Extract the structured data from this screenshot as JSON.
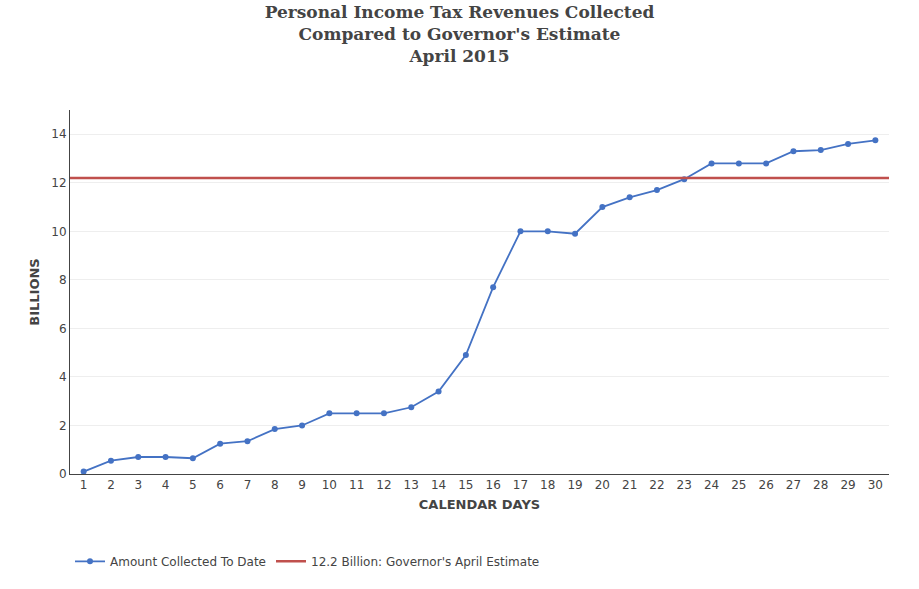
{
  "chart_data": {
    "type": "line",
    "title": "Personal Income Tax Revenues Collected\nCompared to Governor's Estimate\nApril 2015",
    "xlabel": "CALENDAR DAYS",
    "ylabel": "BILLIONS",
    "x": [
      1,
      2,
      3,
      4,
      5,
      6,
      7,
      8,
      9,
      10,
      11,
      12,
      13,
      14,
      15,
      16,
      17,
      18,
      19,
      20,
      21,
      22,
      23,
      24,
      25,
      26,
      27,
      28,
      29,
      30
    ],
    "series": [
      {
        "name": "Amount Collected To Date",
        "type": "line",
        "marker": "circle",
        "color": "#4472C4",
        "values": [
          0.1,
          0.55,
          0.7,
          0.7,
          0.65,
          1.25,
          1.35,
          1.85,
          2.0,
          2.5,
          2.5,
          2.5,
          2.75,
          3.4,
          4.9,
          7.7,
          10.0,
          10.0,
          9.9,
          11.0,
          11.4,
          11.7,
          12.15,
          12.8,
          12.8,
          12.8,
          13.3,
          13.35,
          13.6,
          13.75
        ]
      },
      {
        "name": "12.2 Billion: Governor's April Estimate",
        "type": "hline",
        "color": "#C0504D",
        "y": 12.2
      }
    ],
    "xlim": [
      0.5,
      30.5
    ],
    "xticks": [
      1,
      2,
      3,
      4,
      5,
      6,
      7,
      8,
      9,
      10,
      11,
      12,
      13,
      14,
      15,
      16,
      17,
      18,
      19,
      20,
      21,
      22,
      23,
      24,
      25,
      26,
      27,
      28,
      29,
      30
    ],
    "ylim": [
      0,
      15
    ],
    "yticks": [
      0,
      2,
      4,
      6,
      8,
      10,
      12,
      14
    ],
    "grid": "y",
    "legend": "bottom"
  }
}
